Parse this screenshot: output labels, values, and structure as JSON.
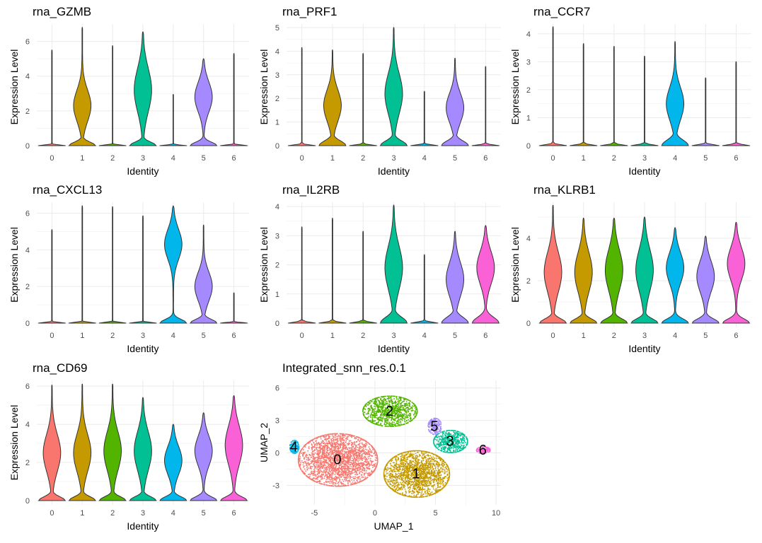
{
  "cluster_colors": [
    "#F8766D",
    "#C49A00",
    "#53B400",
    "#00C094",
    "#00B6EB",
    "#A58AFF",
    "#FB61D7"
  ],
  "chart_data": [
    {
      "type": "violin",
      "title": "rna_GZMB",
      "xlabel": "Identity",
      "ylabel": "Expression Level",
      "categories": [
        "0",
        "1",
        "2",
        "3",
        "4",
        "5",
        "6"
      ],
      "yticks": [
        0,
        2,
        4,
        6
      ],
      "ylim": [
        0,
        7
      ],
      "max_values": [
        5.5,
        6.8,
        5.75,
        6.55,
        2.95,
        5.0,
        5.3
      ],
      "bulk_peak": [
        null,
        2.3,
        null,
        3.2,
        null,
        2.8,
        null
      ]
    },
    {
      "type": "violin",
      "title": "rna_PRF1",
      "xlabel": "Identity",
      "ylabel": "Expression Level",
      "categories": [
        "0",
        "1",
        "2",
        "3",
        "4",
        "5",
        "6"
      ],
      "yticks": [
        0,
        1,
        2,
        3,
        4,
        5
      ],
      "ylim": [
        0,
        5.15
      ],
      "max_values": [
        4.15,
        4.05,
        3.9,
        5.0,
        2.3,
        3.7,
        3.35
      ],
      "bulk_peak": [
        null,
        1.7,
        null,
        2.2,
        null,
        1.6,
        null
      ]
    },
    {
      "type": "violin",
      "title": "rna_CCR7",
      "xlabel": "Identity",
      "ylabel": "Expression Level",
      "categories": [
        "0",
        "1",
        "2",
        "3",
        "4",
        "5",
        "6"
      ],
      "yticks": [
        0,
        1,
        2,
        3,
        4
      ],
      "ylim": [
        0,
        4.35
      ],
      "max_values": [
        4.25,
        3.65,
        3.55,
        3.2,
        3.72,
        2.42,
        3.0
      ],
      "bulk_peak": [
        null,
        null,
        null,
        null,
        1.5,
        null,
        null
      ]
    },
    {
      "type": "violin",
      "title": "rna_CXCL13",
      "xlabel": "Identity",
      "ylabel": "Expression Level",
      "categories": [
        "0",
        "1",
        "2",
        "3",
        "4",
        "5",
        "6"
      ],
      "yticks": [
        0,
        2,
        4,
        6
      ],
      "ylim": [
        0,
        6.6
      ],
      "max_values": [
        5.1,
        6.4,
        6.35,
        5.85,
        6.4,
        5.35,
        1.65
      ],
      "bulk_peak": [
        null,
        null,
        null,
        null,
        4.3,
        2.0,
        null
      ]
    },
    {
      "type": "violin",
      "title": "rna_IL2RB",
      "xlabel": "Identity",
      "ylabel": "Expression Level",
      "categories": [
        "0",
        "1",
        "2",
        "3",
        "4",
        "5",
        "6"
      ],
      "yticks": [
        0,
        1,
        2,
        3,
        4
      ],
      "ylim": [
        0,
        4.15
      ],
      "max_values": [
        3.3,
        3.6,
        3.15,
        4.05,
        2.35,
        3.15,
        3.35
      ],
      "bulk_peak": [
        null,
        null,
        null,
        1.9,
        null,
        1.5,
        1.9
      ]
    },
    {
      "type": "violin",
      "title": "rna_KLRB1",
      "xlabel": "Identity",
      "ylabel": "Expression Level",
      "categories": [
        "0",
        "1",
        "2",
        "3",
        "4",
        "5",
        "6"
      ],
      "yticks": [
        0,
        2,
        4
      ],
      "ylim": [
        0,
        5.7
      ],
      "max_values": [
        5.55,
        4.95,
        4.95,
        5.0,
        4.5,
        4.1,
        4.75
      ],
      "bulk_peak": [
        2.4,
        2.4,
        2.5,
        2.5,
        2.6,
        2.2,
        2.8
      ]
    },
    {
      "type": "violin",
      "title": "rna_CD69",
      "xlabel": "Identity",
      "ylabel": "Expression Level",
      "categories": [
        "0",
        "1",
        "2",
        "3",
        "4",
        "5",
        "6"
      ],
      "yticks": [
        0,
        2,
        4,
        6
      ],
      "ylim": [
        0,
        6.3
      ],
      "max_values": [
        6.05,
        6.1,
        6.1,
        5.4,
        4.0,
        4.6,
        5.5
      ],
      "bulk_peak": [
        2.5,
        2.5,
        2.6,
        2.6,
        2.1,
        2.6,
        2.9
      ]
    },
    {
      "type": "scatter",
      "title": "Integrated_snn_res.0.1",
      "xlabel": "UMAP_1",
      "ylabel": "UMAP_2",
      "xticks": [
        -5,
        0,
        5,
        10
      ],
      "yticks": [
        -3,
        0,
        3,
        6
      ],
      "xlim": [
        -7.3,
        10.4
      ],
      "ylim": [
        -4.8,
        6.7
      ],
      "clusters": [
        {
          "label": "0",
          "center": [
            -3.1,
            -0.6
          ],
          "spread": [
            3.5,
            2.6
          ]
        },
        {
          "label": "1",
          "center": [
            3.4,
            -1.9
          ],
          "spread": [
            2.9,
            2.3
          ]
        },
        {
          "label": "2",
          "center": [
            1.2,
            3.9
          ],
          "spread": [
            2.4,
            1.5
          ]
        },
        {
          "label": "3",
          "center": [
            6.2,
            1.1
          ],
          "spread": [
            1.5,
            1.1
          ]
        },
        {
          "label": "4",
          "center": [
            -6.7,
            0.6
          ],
          "spread": [
            0.4,
            0.65
          ]
        },
        {
          "label": "5",
          "center": [
            4.9,
            2.5
          ],
          "spread": [
            0.6,
            0.8
          ]
        },
        {
          "label": "6",
          "center": [
            8.9,
            0.3
          ],
          "spread": [
            0.6,
            0.35
          ]
        }
      ]
    }
  ]
}
